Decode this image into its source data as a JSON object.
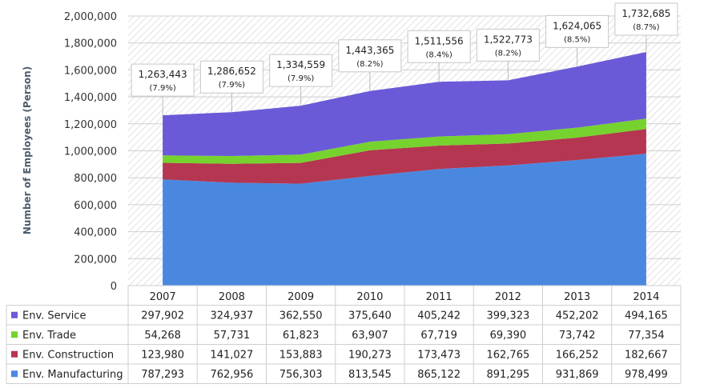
{
  "chart_data": {
    "type": "area",
    "stacked": true,
    "categories": [
      "2007",
      "2008",
      "2009",
      "2010",
      "2011",
      "2012",
      "2013",
      "2014"
    ],
    "ylabel": "Number of Employees (Person)",
    "ylim": [
      0,
      2000000
    ],
    "yticks": [
      "0",
      "200,000",
      "400,000",
      "600,000",
      "800,000",
      "1,000,000",
      "1,200,000",
      "1,400,000",
      "1,600,000",
      "1,800,000",
      "2,000,000"
    ],
    "grid": true,
    "series": [
      {
        "name": "Env. Manufacturing",
        "color": "#4a88e0",
        "values": [
          787293,
          762956,
          756303,
          813545,
          865122,
          891295,
          931869,
          978499
        ],
        "labels": [
          "787,293",
          "762,956",
          "756,303",
          "813,545",
          "865,122",
          "891,295",
          "931,869",
          "978,499"
        ]
      },
      {
        "name": "Env. Construction",
        "color": "#b43650",
        "values": [
          123980,
          141027,
          153883,
          190273,
          173473,
          162765,
          166252,
          182667
        ],
        "labels": [
          "123,980",
          "141,027",
          "153,883",
          "190,273",
          "173,473",
          "162,765",
          "166,252",
          "182,667"
        ]
      },
      {
        "name": "Env. Trade",
        "color": "#76d22e",
        "values": [
          54268,
          57731,
          61823,
          63907,
          67719,
          69390,
          73742,
          77354
        ],
        "labels": [
          "54,268",
          "57,731",
          "61,823",
          "63,907",
          "67,719",
          "69,390",
          "73,742",
          "77,354"
        ]
      },
      {
        "name": "Env. Service",
        "color": "#6a5ad8",
        "values": [
          297902,
          324937,
          362550,
          375640,
          405242,
          399323,
          452202,
          494165
        ],
        "labels": [
          "297,902",
          "324,937",
          "362,550",
          "375,640",
          "405,242",
          "399,323",
          "452,202",
          "494,165"
        ]
      }
    ],
    "totals": [
      {
        "value": 1263443,
        "label": "1,263,443",
        "share": "(7.9%)"
      },
      {
        "value": 1286652,
        "label": "1,286,652",
        "share": "(7.9%)"
      },
      {
        "value": 1334559,
        "label": "1,334,559",
        "share": "(7.9%)"
      },
      {
        "value": 1443365,
        "label": "1,443,365",
        "share": "(8.2%)"
      },
      {
        "value": 1511556,
        "label": "1,511,556",
        "share": "(8.4%)"
      },
      {
        "value": 1522773,
        "label": "1,522,773",
        "share": "(8.2%)"
      },
      {
        "value": 1624065,
        "label": "1,624,065",
        "share": "(8.5%)"
      },
      {
        "value": 1732685,
        "label": "1,732,685",
        "share": "(8.7%)"
      }
    ],
    "table_row_order": [
      "Env. Service",
      "Env. Trade",
      "Env. Construction",
      "Env. Manufacturing"
    ]
  }
}
